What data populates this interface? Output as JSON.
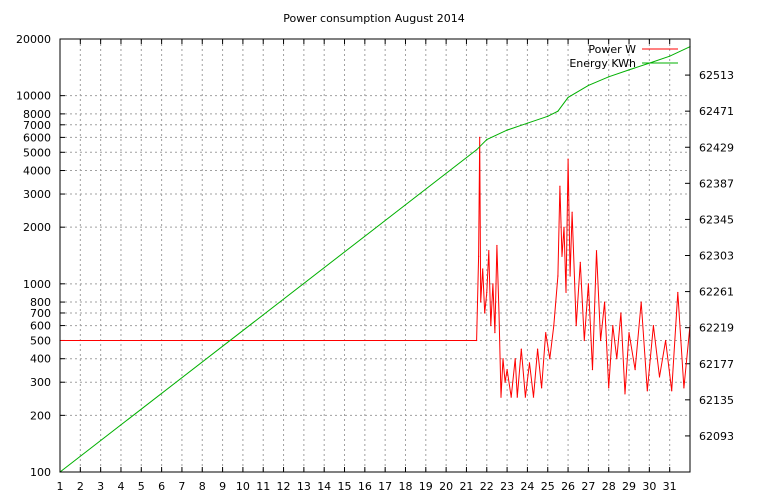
{
  "chart_data": {
    "type": "line",
    "title": "Power consumption August 2014",
    "xlabel": "",
    "ylabel": "",
    "y2label": "",
    "xlim": [
      1,
      32
    ],
    "ylim": [
      100,
      20000
    ],
    "y_scale": "log",
    "y2lim": [
      62051,
      62555
    ],
    "grid": true,
    "legend_position": "top-right",
    "x_ticks": [
      "1",
      "2",
      "3",
      "4",
      "5",
      "6",
      "7",
      "8",
      "9",
      "10",
      "11",
      "12",
      "13",
      "14",
      "15",
      "16",
      "17",
      "18",
      "19",
      "20",
      "21",
      "22",
      "23",
      "24",
      "25",
      "26",
      "27",
      "28",
      "29",
      "30",
      "31"
    ],
    "y_ticks": [
      {
        "value": 100,
        "label": "100"
      },
      {
        "value": 200,
        "label": "200"
      },
      {
        "value": 300,
        "label": "300"
      },
      {
        "value": 400,
        "label": "400"
      },
      {
        "value": 500,
        "label": "500"
      },
      {
        "value": 600,
        "label": "600"
      },
      {
        "value": 700,
        "label": "700"
      },
      {
        "value": 800,
        "label": "800"
      },
      {
        "value": 1000,
        "label": "1000"
      },
      {
        "value": 2000,
        "label": "2000"
      },
      {
        "value": 3000,
        "label": "3000"
      },
      {
        "value": 4000,
        "label": "4000"
      },
      {
        "value": 5000,
        "label": "5000"
      },
      {
        "value": 6000,
        "label": "6000"
      },
      {
        "value": 7000,
        "label": "7000"
      },
      {
        "value": 8000,
        "label": "8000"
      },
      {
        "value": 10000,
        "label": "10000"
      },
      {
        "value": 20000,
        "label": "20000"
      }
    ],
    "y2_ticks": [
      {
        "value": 62093,
        "label": "62093"
      },
      {
        "value": 62135,
        "label": "62135"
      },
      {
        "value": 62177,
        "label": "62177"
      },
      {
        "value": 62219,
        "label": "62219"
      },
      {
        "value": 62261,
        "label": "62261"
      },
      {
        "value": 62303,
        "label": "62303"
      },
      {
        "value": 62345,
        "label": "62345"
      },
      {
        "value": 62387,
        "label": "62387"
      },
      {
        "value": 62429,
        "label": "62429"
      },
      {
        "value": 62471,
        "label": "62471"
      },
      {
        "value": 62513,
        "label": "62513"
      }
    ],
    "series": [
      {
        "name": "Power W",
        "color": "#ff0000",
        "axis": "y",
        "x": [
          1,
          21.5,
          21.6,
          21.65,
          21.7,
          21.8,
          21.9,
          22.0,
          22.1,
          22.2,
          22.3,
          22.4,
          22.5,
          22.6,
          22.7,
          22.8,
          22.9,
          23.0,
          23.2,
          23.4,
          23.5,
          23.7,
          23.9,
          24.1,
          24.3,
          24.5,
          24.7,
          24.9,
          25.1,
          25.3,
          25.5,
          25.6,
          25.7,
          25.8,
          25.9,
          26.0,
          26.1,
          26.2,
          26.4,
          26.6,
          26.8,
          27.0,
          27.2,
          27.4,
          27.6,
          27.8,
          28.0,
          28.2,
          28.4,
          28.6,
          28.8,
          29.0,
          29.3,
          29.6,
          29.9,
          30.2,
          30.5,
          30.8,
          31.1,
          31.4,
          31.7,
          32.0
        ],
        "values": [
          500,
          500,
          1400,
          6000,
          800,
          1200,
          700,
          900,
          1500,
          600,
          1000,
          550,
          1600,
          700,
          250,
          400,
          300,
          350,
          250,
          400,
          250,
          450,
          250,
          380,
          250,
          450,
          280,
          550,
          400,
          600,
          1100,
          3300,
          1400,
          2000,
          900,
          4600,
          1100,
          2400,
          600,
          1300,
          500,
          1000,
          350,
          1500,
          500,
          800,
          280,
          600,
          400,
          700,
          260,
          550,
          350,
          800,
          270,
          600,
          320,
          500,
          270,
          900,
          280,
          600
        ]
      },
      {
        "name": "Energy KWh",
        "color": "#00b000",
        "axis": "y2",
        "x": [
          1,
          21.5,
          22.0,
          23.0,
          24.0,
          25.0,
          25.5,
          26.0,
          27.0,
          28.0,
          29.0,
          30.0,
          31.0,
          32.0
        ],
        "values": [
          62051,
          62426,
          62438,
          62449,
          62457,
          62465,
          62471,
          62487,
          62501,
          62511,
          62519,
          62527,
          62535,
          62546
        ]
      }
    ]
  }
}
